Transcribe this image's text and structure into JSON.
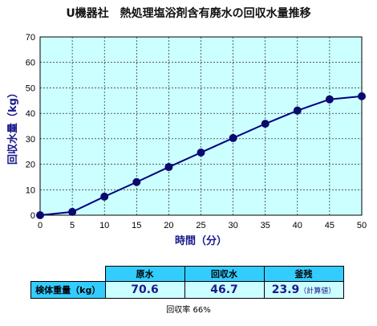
{
  "chart_data": {
    "type": "line",
    "title": "U機器社　熱処理塩浴剤含有廃水の回収水量推移",
    "xlabel": "時間（分）",
    "ylabel": "回収水量（kg）",
    "x": [
      0,
      5,
      10,
      15,
      20,
      25,
      30,
      35,
      40,
      45,
      50
    ],
    "series": [
      {
        "values": [
          0,
          1.3,
          7.3,
          13,
          18.9,
          24.6,
          30.3,
          35.9,
          41.1,
          45.5,
          46.7
        ]
      }
    ],
    "xlim": [
      0,
      50
    ],
    "ylim": [
      0,
      70
    ],
    "xticks": [
      "0",
      "5",
      "10",
      "15",
      "20",
      "25",
      "30",
      "35",
      "40",
      "45",
      "50"
    ],
    "yticks": [
      "0",
      "10",
      "20",
      "30",
      "40",
      "50",
      "60",
      "70"
    ],
    "grid": true,
    "colors": {
      "plot_bg": "#ccffff",
      "line": "#00007f",
      "marker": "#0a0a6e"
    }
  },
  "table": {
    "headers": [
      "原水",
      "回収水",
      "釜残"
    ],
    "row_label": "検体重量（kg）",
    "values": [
      "70.6",
      "46.7",
      "23.9"
    ],
    "note": "（計算値）"
  },
  "footer": "回収率 66%"
}
